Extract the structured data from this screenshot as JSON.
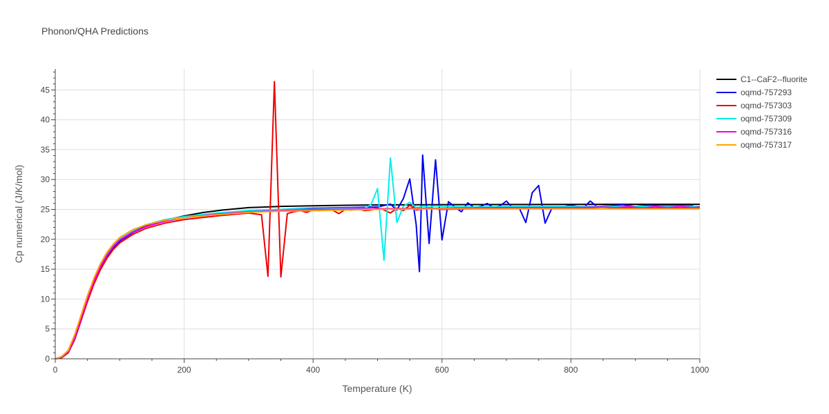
{
  "chart_data": {
    "type": "line",
    "title": "Phonon/QHA Predictions",
    "xlabel": "Temperature (K)",
    "ylabel": "Cp numerical (J/K/mol)",
    "xlim": [
      0,
      1000
    ],
    "ylim": [
      0,
      48.5
    ],
    "xticks": [
      0,
      200,
      400,
      600,
      800,
      1000
    ],
    "yticks": [
      0,
      5,
      10,
      15,
      20,
      25,
      30,
      35,
      40,
      45
    ],
    "grid": true,
    "legend_position": "top-right",
    "series": [
      {
        "name": "C1--CaF2--fluorite",
        "color": "#000000",
        "x": [
          0,
          10,
          20,
          30,
          40,
          50,
          60,
          70,
          80,
          90,
          100,
          120,
          140,
          170,
          200,
          230,
          260,
          300,
          350,
          400,
          450,
          500,
          600,
          700,
          800,
          900,
          1000
        ],
        "y": [
          0,
          0.3,
          1.3,
          3.6,
          6.9,
          10.2,
          13.1,
          15.5,
          17.4,
          18.8,
          19.9,
          21.2,
          22.2,
          23.2,
          23.9,
          24.5,
          24.9,
          25.3,
          25.5,
          25.6,
          25.7,
          25.75,
          25.8,
          25.82,
          25.84,
          25.85,
          25.85
        ]
      },
      {
        "name": "oqmd-757293",
        "color": "#0000ee",
        "x": [
          0,
          10,
          20,
          30,
          40,
          50,
          60,
          70,
          80,
          90,
          100,
          120,
          140,
          170,
          200,
          250,
          300,
          350,
          400,
          450,
          500,
          520,
          530,
          540,
          550,
          560,
          565,
          570,
          580,
          590,
          600,
          610,
          620,
          630,
          640,
          650,
          660,
          670,
          680,
          690,
          700,
          710,
          720,
          730,
          740,
          750,
          760,
          770,
          780,
          800,
          820,
          830,
          840,
          860,
          880,
          900,
          920,
          940,
          960,
          980,
          990
        ],
        "y": [
          0,
          0.2,
          1.0,
          3.2,
          6.4,
          9.7,
          12.7,
          15.1,
          17.1,
          18.6,
          19.7,
          21.1,
          22.1,
          23.1,
          23.7,
          24.3,
          24.8,
          25.0,
          25.2,
          25.3,
          25.4,
          25.9,
          24.9,
          26.8,
          30.1,
          22.4,
          14.6,
          34.1,
          19.3,
          33.3,
          19.9,
          26.3,
          25.4,
          24.6,
          26.1,
          25.3,
          25.5,
          26.0,
          25.3,
          25.6,
          26.4,
          25.2,
          25.2,
          22.8,
          27.8,
          29.0,
          22.7,
          25.1,
          25.3,
          25.7,
          25.3,
          26.4,
          25.5,
          25.6,
          25.8,
          25.5,
          25.7,
          25.6,
          25.6,
          25.6,
          25.6
        ]
      },
      {
        "name": "oqmd-757303",
        "color": "#ee0000",
        "x": [
          0,
          10,
          20,
          30,
          40,
          50,
          60,
          70,
          80,
          90,
          100,
          120,
          140,
          170,
          200,
          250,
          300,
          320,
          330,
          340,
          350,
          360,
          370,
          380,
          390,
          400,
          410,
          420,
          430,
          440,
          450,
          460,
          470,
          480,
          490,
          500,
          510,
          520,
          530,
          540,
          550,
          560,
          570,
          580,
          600,
          650,
          700,
          750,
          800,
          850,
          900,
          950,
          1000
        ],
        "y": [
          0,
          0.2,
          1.0,
          3.2,
          6.4,
          9.6,
          12.5,
          14.9,
          16.8,
          18.3,
          19.4,
          20.8,
          21.8,
          22.7,
          23.3,
          23.9,
          24.4,
          24.1,
          13.8,
          46.4,
          13.7,
          24.3,
          24.6,
          24.8,
          24.5,
          24.9,
          24.8,
          24.9,
          24.9,
          24.3,
          25.0,
          24.9,
          25.1,
          24.8,
          24.9,
          25.3,
          24.9,
          24.4,
          25.2,
          24.8,
          25.7,
          24.9,
          25.1,
          25.2,
          25.0,
          25.1,
          25.1,
          25.2,
          25.3,
          25.1,
          25.3,
          25.2,
          25.3
        ]
      },
      {
        "name": "oqmd-757309",
        "color": "#00eeee",
        "x": [
          0,
          10,
          20,
          30,
          40,
          50,
          60,
          70,
          80,
          90,
          100,
          120,
          140,
          170,
          200,
          250,
          300,
          350,
          400,
          450,
          480,
          490,
          500,
          510,
          520,
          530,
          540,
          550,
          560,
          570,
          580,
          590,
          600,
          650,
          700,
          750,
          800,
          850,
          900,
          950,
          1000
        ],
        "y": [
          0,
          0.3,
          1.2,
          3.6,
          7.0,
          10.3,
          13.3,
          15.7,
          17.6,
          19.1,
          20.2,
          21.5,
          22.4,
          23.3,
          23.8,
          24.4,
          24.8,
          25.0,
          25.1,
          25.2,
          25.2,
          25.8,
          28.5,
          16.5,
          33.6,
          22.8,
          25.5,
          26.2,
          25.3,
          25.5,
          25.4,
          25.6,
          25.5,
          25.4,
          25.5,
          25.5,
          25.5,
          25.5,
          25.5,
          25.5,
          25.5
        ]
      },
      {
        "name": "oqmd-757316",
        "color": "#ee00ee",
        "x": [
          0,
          10,
          20,
          30,
          40,
          50,
          60,
          70,
          80,
          90,
          100,
          120,
          140,
          170,
          200,
          250,
          300,
          350,
          400,
          500,
          600,
          700,
          800,
          850,
          870,
          890,
          910,
          930,
          950,
          970,
          990,
          1000
        ],
        "y": [
          0,
          0.3,
          1.2,
          3.5,
          6.8,
          10.1,
          13.0,
          15.4,
          17.3,
          18.8,
          19.9,
          21.2,
          22.1,
          23.0,
          23.6,
          24.2,
          24.6,
          24.8,
          25.0,
          25.1,
          25.2,
          25.3,
          25.3,
          25.4,
          25.3,
          25.5,
          25.2,
          25.5,
          25.3,
          25.5,
          25.3,
          25.4
        ]
      },
      {
        "name": "oqmd-757317",
        "color": "#ffa500",
        "x": [
          0,
          10,
          20,
          30,
          40,
          50,
          60,
          70,
          80,
          90,
          100,
          120,
          140,
          170,
          200,
          250,
          300,
          350,
          400,
          500,
          600,
          700,
          800,
          900,
          1000
        ],
        "y": [
          0,
          0.4,
          1.4,
          4.0,
          7.3,
          10.6,
          13.5,
          15.9,
          17.8,
          19.2,
          20.3,
          21.6,
          22.4,
          23.2,
          23.6,
          24.1,
          24.5,
          24.7,
          24.8,
          25.0,
          25.1,
          25.1,
          25.1,
          25.1,
          25.1
        ]
      }
    ]
  }
}
